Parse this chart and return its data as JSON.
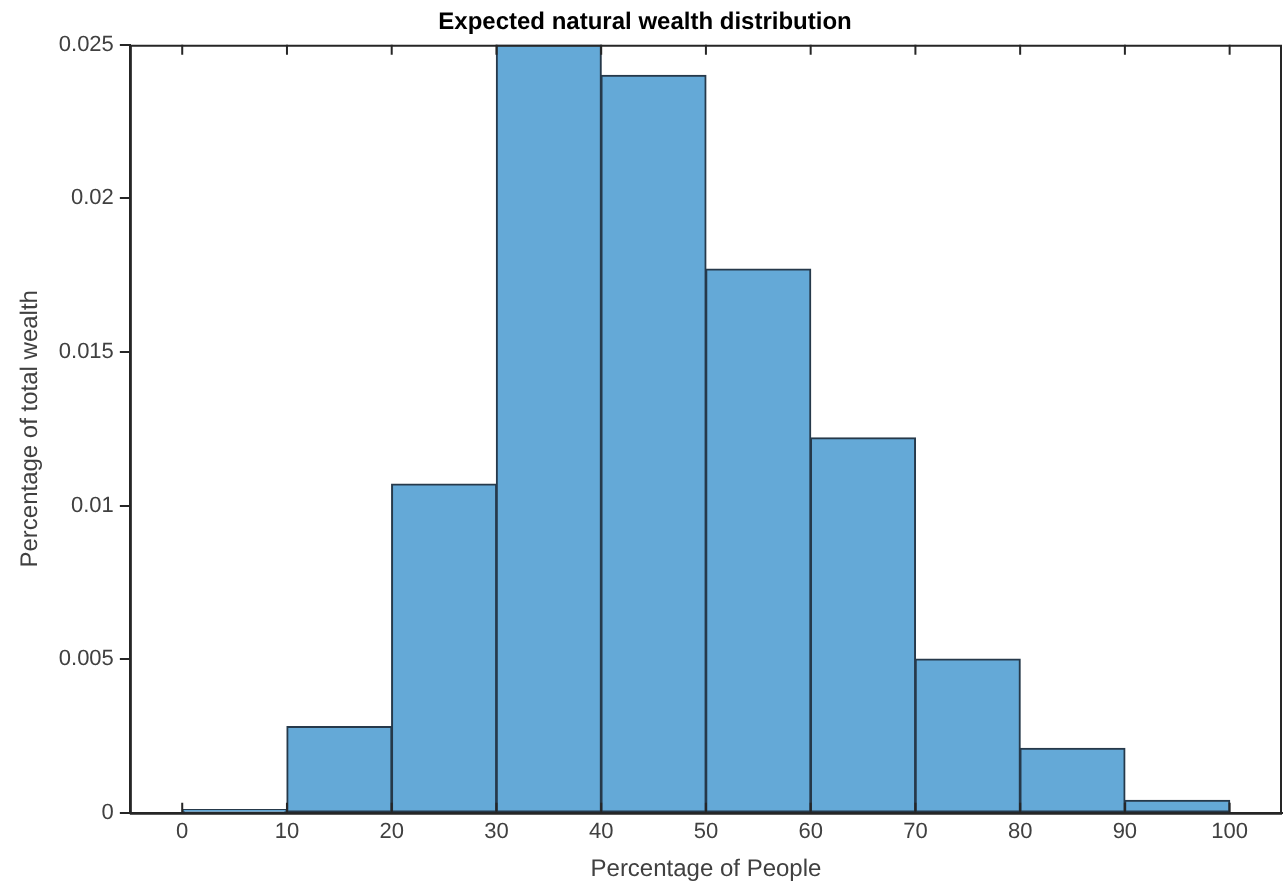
{
  "chart_data": {
    "type": "histogram",
    "title": "Expected natural wealth distribution",
    "xlabel": "Percentage of People",
    "ylabel": "Percentage of total wealth",
    "bins": [
      0,
      10,
      20,
      30,
      40,
      50,
      60,
      70,
      80,
      90,
      100
    ],
    "values": [
      0.0001,
      0.0028,
      0.0107,
      0.025,
      0.024,
      0.0177,
      0.0122,
      0.005,
      0.0021,
      0.0004
    ],
    "color": "#64a9d7",
    "xlim": [
      -5,
      105
    ],
    "ylim": [
      0,
      0.025
    ],
    "xticks": [
      0,
      10,
      20,
      30,
      40,
      50,
      60,
      70,
      80,
      90,
      100
    ],
    "yticks": [
      0,
      0.005,
      0.01,
      0.015,
      0.02,
      0.025
    ],
    "grid": false
  }
}
